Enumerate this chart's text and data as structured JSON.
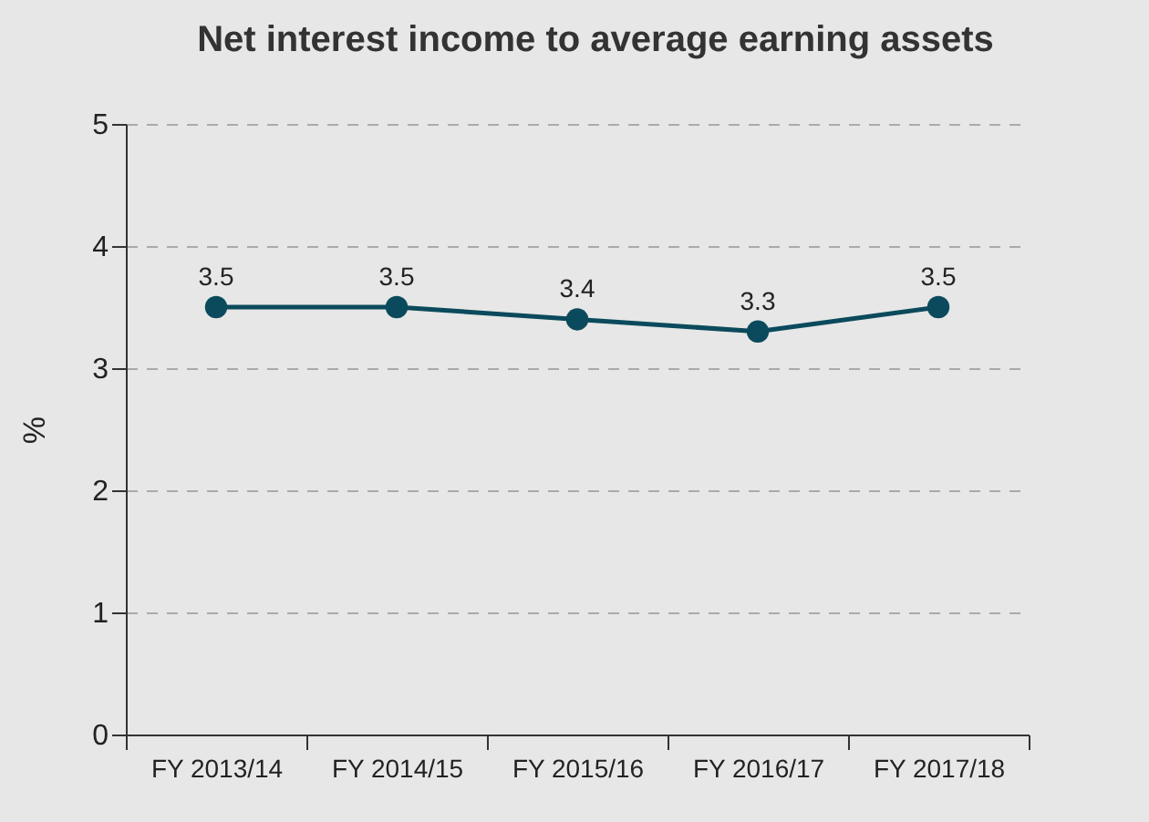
{
  "chart_data": {
    "type": "line",
    "title": "Net interest income to average earning assets",
    "ylabel": "%",
    "categories": [
      "FY 2013/14",
      "FY 2014/15",
      "FY 2015/16",
      "FY 2016/17",
      "FY 2017/18"
    ],
    "series": [
      {
        "color": "#0b4a5c",
        "values": [
          3.5,
          3.5,
          3.4,
          3.3,
          3.5
        ]
      }
    ],
    "ylim": [
      0,
      5
    ],
    "yticks": [
      0,
      1,
      2,
      3,
      4,
      5
    ],
    "grid": "y",
    "marker": "circle",
    "line_style": "solid",
    "data_labels": true
  }
}
